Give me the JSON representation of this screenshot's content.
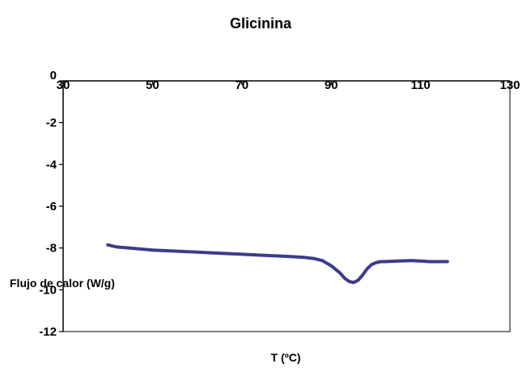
{
  "chart_data": {
    "type": "line",
    "title": "Glicinina",
    "xlabel": "T (ºC)",
    "ylabel": "Flujo de calor (W/g)",
    "xlim": [
      30,
      130
    ],
    "ylim": [
      -12,
      0
    ],
    "x_ticks": [
      "30",
      "50",
      "70",
      "90",
      "110",
      "130"
    ],
    "y_ticks": [
      "0",
      "-2",
      "-4",
      "-6",
      "-8",
      "-10",
      "-12"
    ],
    "x_tick_values": [
      30,
      50,
      70,
      90,
      110,
      130
    ],
    "y_tick_values": [
      0,
      -2,
      -4,
      -6,
      -8,
      -10,
      -12
    ],
    "grid": false,
    "series_color": "#3c3c8c",
    "series": [
      {
        "x": [
          40,
          42,
          45,
          50,
          55,
          60,
          65,
          70,
          75,
          80,
          84,
          86,
          88,
          90,
          92,
          93,
          94,
          95,
          96,
          97,
          98,
          99,
          100,
          101,
          102,
          105,
          108,
          110,
          112,
          114,
          116
        ],
        "values": [
          -7.85,
          -7.95,
          -8.0,
          -8.1,
          -8.15,
          -8.2,
          -8.25,
          -8.3,
          -8.35,
          -8.4,
          -8.45,
          -8.5,
          -8.6,
          -8.85,
          -9.2,
          -9.45,
          -9.6,
          -9.65,
          -9.55,
          -9.3,
          -9.0,
          -8.8,
          -8.7,
          -8.65,
          -8.65,
          -8.62,
          -8.6,
          -8.62,
          -8.65,
          -8.65,
          -8.65
        ]
      }
    ]
  }
}
